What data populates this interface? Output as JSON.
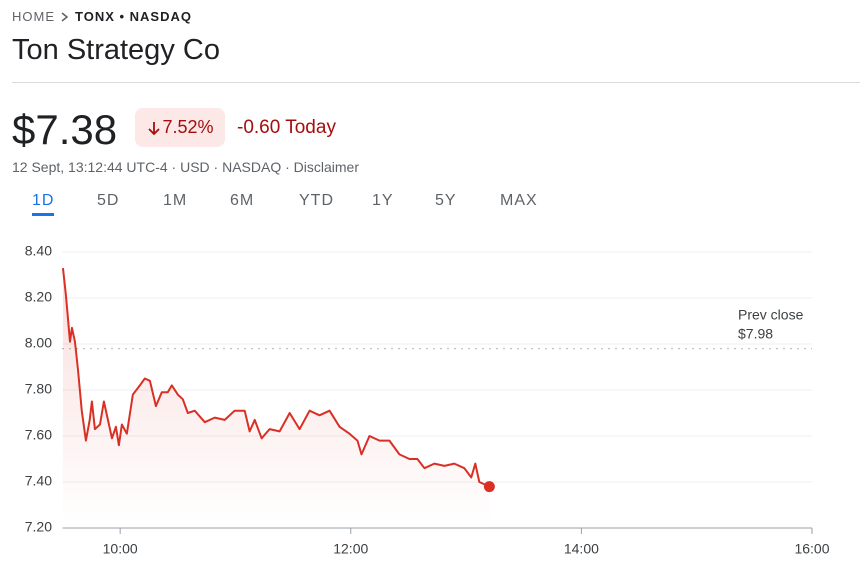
{
  "header": {
    "breadcrumb": [
      "HOME",
      "TONX • NASDAQ"
    ],
    "title": "Ton Strategy Co",
    "price": "$7.38",
    "change_percent": "7.52%",
    "change_today": "-0.60 Today",
    "meta": "12 Sept, 13:12:44 UTC-4 · USD · NASDAQ · Disclaimer",
    "tabs": [
      "1D",
      "5D",
      "1M",
      "6M",
      "YTD",
      "1Y",
      "5Y",
      "MAX"
    ]
  },
  "chart_data": {
    "type": "line",
    "color": "#d93025",
    "x": [
      9.504,
      9.53,
      9.565,
      9.582,
      9.608,
      9.634,
      9.667,
      9.703,
      9.736,
      9.755,
      9.781,
      9.825,
      9.859,
      9.894,
      9.929,
      9.963,
      9.989,
      10.015,
      10.058,
      10.11,
      10.171,
      10.214,
      10.258,
      10.31,
      10.361,
      10.413,
      10.448,
      10.5,
      10.543,
      10.587,
      10.647,
      10.734,
      10.82,
      10.907,
      10.993,
      11.08,
      11.123,
      11.167,
      11.227,
      11.296,
      11.383,
      11.47,
      11.556,
      11.643,
      11.729,
      11.816,
      11.903,
      11.989,
      12.058,
      12.093,
      12.162,
      12.249,
      12.335,
      12.422,
      12.509,
      12.578,
      12.639,
      12.725,
      12.812,
      12.898,
      12.985,
      13.045,
      13.08,
      13.115,
      13.202
    ],
    "values": [
      8.33,
      8.21,
      8.01,
      8.07,
      8.01,
      7.89,
      7.71,
      7.58,
      7.67,
      7.75,
      7.63,
      7.65,
      7.75,
      7.67,
      7.59,
      7.64,
      7.56,
      7.65,
      7.61,
      7.78,
      7.82,
      7.85,
      7.84,
      7.73,
      7.79,
      7.79,
      7.82,
      7.78,
      7.76,
      7.7,
      7.71,
      7.66,
      7.68,
      7.67,
      7.71,
      7.71,
      7.62,
      7.67,
      7.59,
      7.63,
      7.62,
      7.7,
      7.63,
      7.71,
      7.69,
      7.71,
      7.64,
      7.61,
      7.58,
      7.52,
      7.6,
      7.58,
      7.58,
      7.52,
      7.5,
      7.5,
      7.46,
      7.48,
      7.47,
      7.48,
      7.46,
      7.42,
      7.48,
      7.4,
      7.38
    ],
    "xlim": [
      9.5,
      16
    ],
    "xticks": [
      {
        "value": 10,
        "label": "10:00"
      },
      {
        "value": 12,
        "label": "12:00"
      },
      {
        "value": 14,
        "label": "14:00"
      },
      {
        "value": 16,
        "label": "16:00"
      }
    ],
    "ylim": [
      7.2,
      8.4
    ],
    "yticks": [
      {
        "value": 7.2,
        "label": "7.20"
      },
      {
        "value": 7.4,
        "label": "7.40"
      },
      {
        "value": 7.6,
        "label": "7.60"
      },
      {
        "value": 7.8,
        "label": "7.80"
      },
      {
        "value": 8.0,
        "label": "8.00"
      },
      {
        "value": 8.2,
        "label": "8.20"
      },
      {
        "value": 8.4,
        "label": "8.40"
      }
    ],
    "grid": true,
    "prev_close": 7.98,
    "prev_close_title": "Prev close",
    "prev_close_label": "$7.98"
  }
}
